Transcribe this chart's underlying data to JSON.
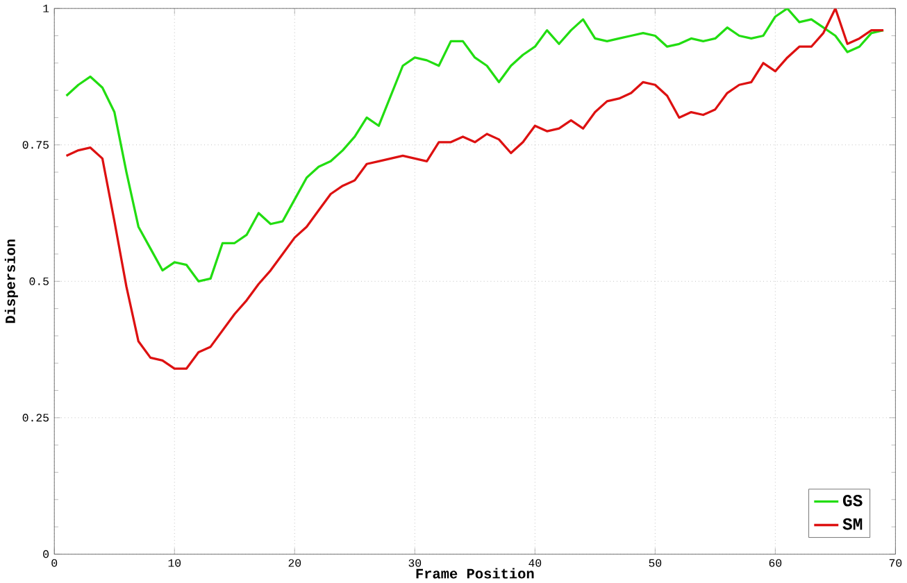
{
  "chart_data": {
    "type": "line",
    "xlabel": "Frame Position",
    "ylabel": "Dispersion",
    "x": [
      1,
      2,
      3,
      4,
      5,
      6,
      7,
      8,
      9,
      10,
      11,
      12,
      13,
      14,
      15,
      16,
      17,
      18,
      19,
      20,
      21,
      22,
      23,
      24,
      25,
      26,
      27,
      28,
      29,
      30,
      31,
      32,
      33,
      34,
      35,
      36,
      37,
      38,
      39,
      40,
      41,
      42,
      43,
      44,
      45,
      46,
      47,
      48,
      49,
      50,
      51,
      52,
      53,
      54,
      55,
      56,
      57,
      58,
      59,
      60,
      61,
      62,
      63,
      64,
      65,
      66,
      67,
      68,
      69
    ],
    "series": [
      {
        "name": "GS",
        "color": "#22dd11",
        "values": [
          0.84,
          0.86,
          0.875,
          0.855,
          0.81,
          0.7,
          0.6,
          0.56,
          0.52,
          0.535,
          0.53,
          0.5,
          0.505,
          0.57,
          0.57,
          0.585,
          0.625,
          0.605,
          0.61,
          0.65,
          0.69,
          0.71,
          0.72,
          0.74,
          0.765,
          0.8,
          0.785,
          0.84,
          0.895,
          0.91,
          0.905,
          0.895,
          0.94,
          0.94,
          0.91,
          0.895,
          0.865,
          0.895,
          0.915,
          0.93,
          0.96,
          0.935,
          0.96,
          0.98,
          0.945,
          0.94,
          0.945,
          0.95,
          0.955,
          0.95,
          0.93,
          0.935,
          0.945,
          0.94,
          0.945,
          0.965,
          0.95,
          0.945,
          0.95,
          0.985,
          1.0,
          0.975,
          0.98,
          0.965,
          0.95,
          0.92,
          0.93,
          0.955,
          0.96
        ]
      },
      {
        "name": "SM",
        "color": "#dd1111",
        "values": [
          0.73,
          0.74,
          0.745,
          0.725,
          0.61,
          0.49,
          0.39,
          0.36,
          0.355,
          0.34,
          0.34,
          0.37,
          0.38,
          0.41,
          0.44,
          0.465,
          0.495,
          0.52,
          0.55,
          0.58,
          0.6,
          0.63,
          0.66,
          0.675,
          0.685,
          0.715,
          0.72,
          0.725,
          0.73,
          0.725,
          0.72,
          0.755,
          0.755,
          0.765,
          0.755,
          0.77,
          0.76,
          0.735,
          0.755,
          0.785,
          0.775,
          0.78,
          0.795,
          0.78,
          0.81,
          0.83,
          0.835,
          0.845,
          0.865,
          0.86,
          0.84,
          0.8,
          0.81,
          0.805,
          0.815,
          0.845,
          0.86,
          0.865,
          0.9,
          0.885,
          0.91,
          0.93,
          0.93,
          0.955,
          1.0,
          0.935,
          0.945,
          0.96,
          0.96
        ]
      }
    ],
    "xlim": [
      0,
      70
    ],
    "ylim": [
      0,
      1
    ],
    "xticks": [
      0,
      10,
      20,
      30,
      40,
      50,
      60,
      70
    ],
    "yticks": [
      0,
      0.25,
      0.5,
      0.75,
      1
    ],
    "grid": true,
    "legend": "bottom right",
    "line_style": "solid",
    "marker": "none"
  }
}
